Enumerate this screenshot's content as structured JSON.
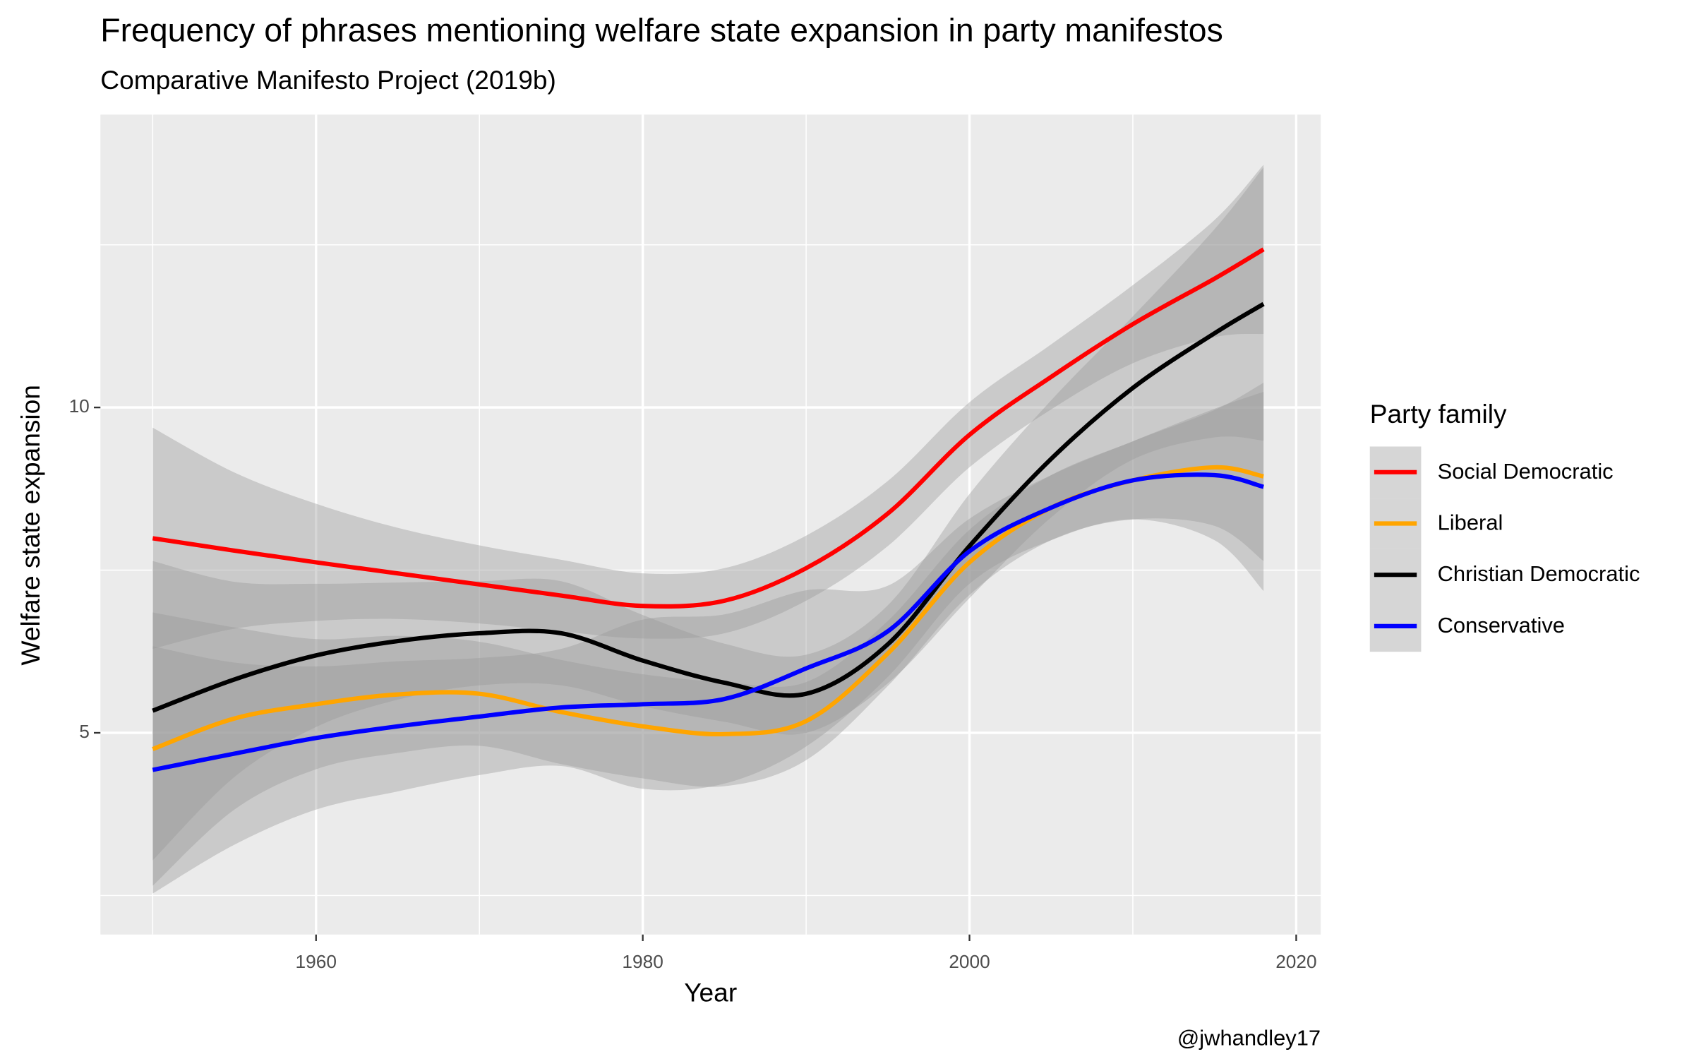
{
  "chart_data": {
    "type": "line",
    "title": "Frequency of phrases mentioning welfare state expansion in party manifestos",
    "subtitle": "Comparative Manifesto Project (2019b)",
    "x_label": "Year",
    "y_label": "Welfare state expansion",
    "caption": "@jwhandley17",
    "legend_title": "Party family",
    "x": [
      1950,
      1955,
      1960,
      1965,
      1970,
      1975,
      1980,
      1985,
      1990,
      1995,
      2000,
      2005,
      2010,
      2015,
      2018
    ],
    "series": [
      {
        "name": "Social Democratic",
        "color": "#ff0000",
        "values": [
          7.99,
          7.8,
          7.62,
          7.45,
          7.28,
          7.11,
          6.95,
          7.03,
          7.53,
          8.37,
          9.58,
          10.47,
          11.28,
          11.98,
          12.43
        ],
        "lower": [
          6.29,
          6.6,
          6.72,
          6.75,
          6.68,
          6.56,
          6.45,
          6.53,
          7.03,
          7.87,
          9.08,
          9.97,
          10.68,
          11.08,
          11.13
        ],
        "upper": [
          9.69,
          9.0,
          8.52,
          8.15,
          7.88,
          7.66,
          7.45,
          7.53,
          8.03,
          8.87,
          10.08,
          10.97,
          11.88,
          12.88,
          13.73
        ]
      },
      {
        "name": "Liberal",
        "color": "#ffa500",
        "values": [
          4.75,
          5.22,
          5.44,
          5.59,
          5.6,
          5.32,
          5.1,
          4.98,
          5.18,
          6.22,
          7.62,
          8.46,
          8.88,
          9.08,
          8.94
        ],
        "lower": [
          2.65,
          3.82,
          4.44,
          4.69,
          4.8,
          4.52,
          4.3,
          4.18,
          4.58,
          5.72,
          7.12,
          7.96,
          8.28,
          8.18,
          7.64
        ],
        "upper": [
          6.85,
          6.62,
          6.44,
          6.49,
          6.4,
          6.12,
          5.9,
          5.78,
          5.78,
          6.72,
          8.12,
          8.96,
          9.48,
          9.98,
          10.24
        ]
      },
      {
        "name": "Christian Democratic",
        "color": "#000000",
        "values": [
          5.34,
          5.82,
          6.19,
          6.41,
          6.53,
          6.53,
          6.11,
          5.77,
          5.6,
          6.36,
          7.87,
          9.21,
          10.3,
          11.14,
          11.59
        ],
        "lower": [
          3.04,
          4.32,
          5.09,
          5.51,
          5.73,
          5.73,
          5.41,
          5.17,
          5.0,
          5.76,
          7.07,
          8.31,
          9.2,
          9.54,
          9.49
        ],
        "upper": [
          7.64,
          7.32,
          7.29,
          7.31,
          7.33,
          7.33,
          6.81,
          6.37,
          6.2,
          6.96,
          8.67,
          10.11,
          11.4,
          12.74,
          13.69
        ]
      },
      {
        "name": "Conservative",
        "color": "#0000ff",
        "values": [
          4.43,
          4.68,
          4.92,
          5.1,
          5.25,
          5.39,
          5.44,
          5.52,
          5.99,
          6.56,
          7.79,
          8.46,
          8.88,
          8.96,
          8.78
        ],
        "lower": [
          2.53,
          3.28,
          3.82,
          4.1,
          4.35,
          4.49,
          4.14,
          4.22,
          4.79,
          5.86,
          7.29,
          7.96,
          8.28,
          7.96,
          7.18
        ],
        "upper": [
          6.33,
          6.08,
          6.02,
          6.1,
          6.15,
          6.29,
          6.74,
          6.82,
          7.19,
          7.26,
          8.29,
          8.96,
          9.48,
          9.96,
          10.38
        ]
      }
    ],
    "band_color": "#999999",
    "xlim": [
      1946.8,
      2021.5
    ],
    "ylim": [
      1.9,
      14.5
    ],
    "xticks": [
      1960,
      1980,
      2000,
      2020
    ],
    "yticks": [
      5,
      10
    ],
    "xminor": [
      1950,
      1970,
      1990,
      2010
    ],
    "yminor": [
      2.5,
      7.5,
      12.5
    ],
    "grid": true
  }
}
